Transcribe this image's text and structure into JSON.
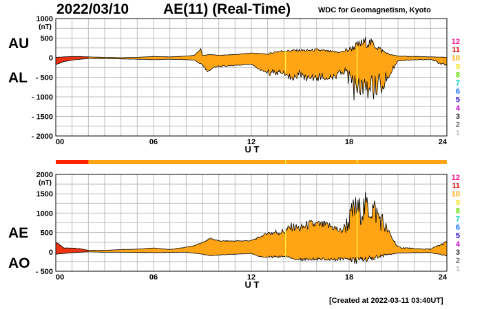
{
  "header": {
    "date": "2022/03/10",
    "title": "AE(11) (Real-Time)",
    "org": "WDC for Geomagnetism, Kyoto"
  },
  "footer": {
    "created": "[Created at 2022-03-11 03:40UT]"
  },
  "labels": {
    "au": "AU",
    "al": "AL",
    "ae": "AE",
    "ao": "AO"
  },
  "colors": {
    "fill": "#ffa515",
    "fill_early": "#ee3311",
    "bar_red": "#ff2200",
    "yellow_line": "#ffff44"
  },
  "station_legend": {
    "labels": [
      "12",
      "11",
      "10",
      "9",
      "8",
      "7",
      "6",
      "5",
      "4",
      "3",
      "2",
      "1"
    ],
    "colors": [
      "#ff1493",
      "#dd0000",
      "#ffa500",
      "#f0e000",
      "#66dd00",
      "#00cccc",
      "#0066ff",
      "#2200cc",
      "#cc00cc",
      "#333333",
      "#777777",
      "#bbbbbb"
    ]
  },
  "chart_data": [
    {
      "type": "area",
      "name": "AU/AL",
      "ylabel": "(nT)",
      "xlabel": "U T",
      "xlim": [
        0,
        24
      ],
      "ylim": [
        -2000,
        1000
      ],
      "xticks": [
        0,
        6,
        12,
        18,
        24
      ],
      "xtick_labels": [
        "00",
        "06",
        "12",
        "18",
        "24"
      ],
      "yticks": [
        1000,
        500,
        0,
        -500,
        -1000,
        -1500,
        -2000
      ],
      "ytick_labels": [
        "1000",
        "500",
        "0",
        "- 500",
        "- 1000",
        "- 1500",
        "- 2000"
      ],
      "grid": true,
      "series": [
        {
          "name": "AU",
          "x": [
            0,
            0.5,
            1,
            1.5,
            2,
            3,
            4,
            5,
            6,
            7,
            8,
            8.5,
            8.9,
            9,
            9.5,
            10,
            11,
            12,
            13,
            13.5,
            14,
            15,
            15.5,
            16,
            17,
            17.5,
            18,
            18.5,
            19,
            19.5,
            20,
            20.5,
            21,
            22,
            23,
            24
          ],
          "values": [
            10,
            20,
            30,
            30,
            20,
            10,
            0,
            10,
            30,
            20,
            40,
            60,
            220,
            60,
            80,
            60,
            80,
            120,
            90,
            150,
            170,
            190,
            180,
            200,
            150,
            140,
            210,
            310,
            400,
            350,
            180,
            80,
            40,
            30,
            20,
            10
          ]
        },
        {
          "name": "AL",
          "x": [
            0,
            0.5,
            1,
            1.5,
            2,
            3,
            4,
            5,
            6,
            7,
            8,
            8.5,
            9,
            9.3,
            9.7,
            10,
            11,
            12,
            12.5,
            13,
            14,
            14.5,
            15,
            15.5,
            16,
            17,
            17.5,
            18,
            18.3,
            18.6,
            19,
            19.5,
            20,
            20.5,
            21,
            22,
            23,
            24
          ],
          "values": [
            -180,
            -100,
            -60,
            -40,
            -20,
            -20,
            -30,
            -40,
            -50,
            -40,
            -50,
            -60,
            -180,
            -350,
            -250,
            -220,
            -200,
            -170,
            -300,
            -380,
            -370,
            -500,
            -400,
            -580,
            -500,
            -500,
            -380,
            -520,
            -820,
            -700,
            -750,
            -800,
            -650,
            -400,
            -80,
            -50,
            -50,
            -200
          ]
        }
      ]
    },
    {
      "type": "area",
      "name": "AE/AO",
      "ylabel": "(nT)",
      "xlabel": "U T",
      "xlim": [
        0,
        24
      ],
      "ylim": [
        -500,
        2000
      ],
      "xticks": [
        0,
        6,
        12,
        18,
        24
      ],
      "xtick_labels": [
        "00",
        "06",
        "12",
        "18",
        "24"
      ],
      "yticks": [
        2000,
        1500,
        1000,
        500,
        0,
        -500
      ],
      "ytick_labels": [
        "2000",
        "1500",
        "1000",
        "500",
        "0",
        "- 500"
      ],
      "grid": true,
      "series": [
        {
          "name": "AE",
          "x": [
            0,
            0.5,
            1,
            1.5,
            2,
            3,
            4,
            5,
            6,
            7,
            8,
            8.5,
            9,
            9.5,
            10,
            11,
            12,
            12.5,
            13,
            14,
            14.5,
            15,
            15.5,
            16,
            17,
            17.5,
            18,
            18.3,
            18.6,
            19,
            19.5,
            20,
            20.5,
            21,
            22,
            23,
            24
          ],
          "values": [
            250,
            100,
            100,
            80,
            40,
            40,
            60,
            70,
            100,
            60,
            120,
            160,
            240,
            350,
            280,
            280,
            290,
            380,
            480,
            520,
            650,
            600,
            700,
            700,
            650,
            520,
            800,
            1100,
            1050,
            1150,
            1100,
            800,
            450,
            120,
            80,
            70,
            250
          ]
        },
        {
          "name": "AO",
          "x": [
            0,
            0.5,
            1,
            1.5,
            2,
            3,
            4,
            5,
            6,
            7,
            8,
            9,
            9.5,
            10,
            11,
            12,
            12.5,
            13,
            14,
            15,
            16,
            17,
            18,
            18.3,
            18.6,
            19,
            19.5,
            20,
            21,
            22,
            23,
            24
          ],
          "values": [
            -60,
            -40,
            -20,
            -10,
            0,
            -10,
            -10,
            -15,
            -20,
            -15,
            -10,
            -60,
            -100,
            -80,
            -60,
            -40,
            -120,
            -140,
            -120,
            -200,
            -180,
            -200,
            -160,
            -250,
            -180,
            -180,
            -150,
            -100,
            -30,
            -20,
            -20,
            -100
          ]
        }
      ]
    }
  ]
}
